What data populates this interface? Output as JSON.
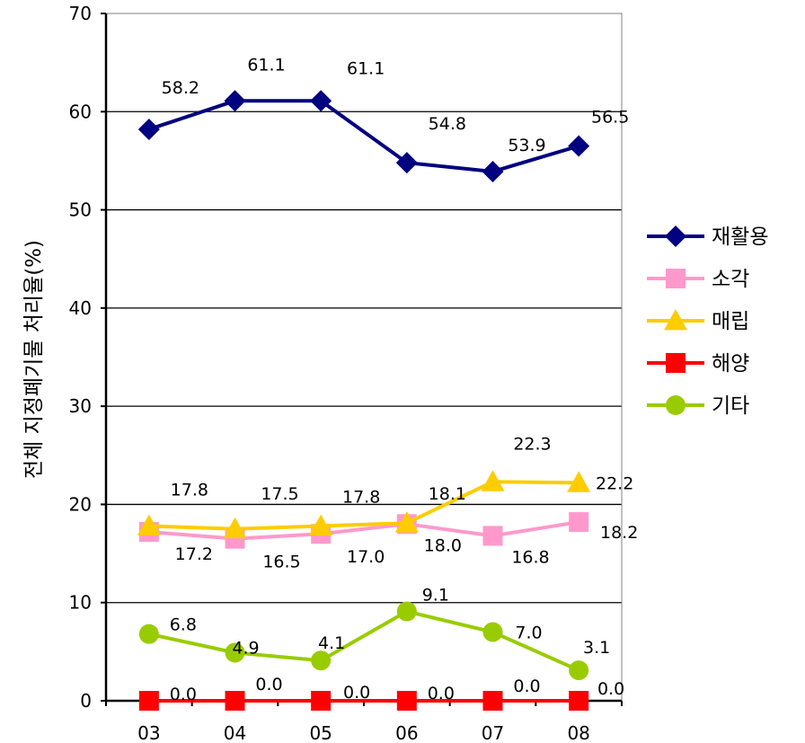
{
  "chart_data": {
    "type": "line",
    "title": "",
    "xlabel": "",
    "ylabel": "전체 지정폐기물 처리율(%)",
    "categories": [
      "03",
      "04",
      "05",
      "06",
      "07",
      "08"
    ],
    "ylim": [
      0,
      70
    ],
    "yticks": [
      "0",
      "10",
      "20",
      "30",
      "40",
      "50",
      "60",
      "70"
    ],
    "grid": true,
    "legend_position": "right",
    "series": [
      {
        "name": "재활용",
        "color": "#000080",
        "marker": "diamond",
        "values": [
          58.2,
          61.1,
          61.1,
          54.8,
          53.9,
          56.5
        ],
        "labels": [
          "58.2",
          "61.1",
          "61.1",
          "54.8",
          "53.9",
          "56.5"
        ]
      },
      {
        "name": "소각",
        "color": "#FF99CC",
        "marker": "square",
        "values": [
          17.2,
          16.5,
          17.0,
          18.0,
          16.8,
          18.2
        ],
        "labels": [
          "17.2",
          "16.5",
          "17.0",
          "18.0",
          "16.8",
          "18.2"
        ]
      },
      {
        "name": "매립",
        "color": "#FFCC00",
        "marker": "triangle",
        "values": [
          17.8,
          17.5,
          17.8,
          18.1,
          22.3,
          22.2
        ],
        "labels": [
          "17.8",
          "17.5",
          "17.8",
          "18.1",
          "22.3",
          "22.2"
        ]
      },
      {
        "name": "해양",
        "color": "#FF0000",
        "marker": "square",
        "values": [
          0.0,
          0.0,
          0.0,
          0.0,
          0.0,
          0.0
        ],
        "labels": [
          "0.0",
          "0.0",
          "0.0",
          "0.0",
          "0.0",
          "0.0"
        ]
      },
      {
        "name": "기타",
        "color": "#99CC00",
        "marker": "circle",
        "values": [
          6.8,
          4.9,
          4.1,
          9.1,
          7.0,
          3.1
        ],
        "labels": [
          "6.8",
          "4.9",
          "4.1",
          "9.1",
          "7.0",
          "3.1"
        ]
      }
    ]
  }
}
